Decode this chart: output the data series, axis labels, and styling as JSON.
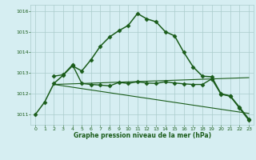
{
  "title": "Graphe pression niveau de la mer (hPa)",
  "background_color": "#d6eef2",
  "grid_color": "#aacccc",
  "line_color": "#1a5c1a",
  "xlim": [
    -0.5,
    23.5
  ],
  "ylim": [
    1010.5,
    1016.3
  ],
  "yticks": [
    1011,
    1012,
    1013,
    1014,
    1015,
    1016
  ],
  "xticks": [
    0,
    1,
    2,
    3,
    4,
    5,
    6,
    7,
    8,
    9,
    10,
    11,
    12,
    13,
    14,
    15,
    16,
    17,
    18,
    19,
    20,
    21,
    22,
    23
  ],
  "series": [
    {
      "x": [
        0,
        1,
        2,
        3,
        4,
        5,
        6,
        7,
        8,
        9,
        10,
        11,
        12,
        13,
        14,
        15,
        16,
        17,
        18,
        19,
        20,
        21,
        22,
        23
      ],
      "y": [
        1011.0,
        1011.6,
        1012.5,
        1012.9,
        1013.35,
        1013.1,
        1013.65,
        1014.3,
        1014.75,
        1015.05,
        1015.3,
        1015.88,
        1015.62,
        1015.48,
        1015.0,
        1014.8,
        1014.0,
        1013.3,
        1012.85,
        1012.82,
        1012.0,
        1011.9,
        1011.35,
        1010.78
      ],
      "marker": "D",
      "markersize": 2.5,
      "linewidth": 1.1,
      "linestyle": "-"
    },
    {
      "x": [
        2,
        3,
        4,
        5,
        6,
        7,
        8,
        9,
        10,
        11,
        12,
        13,
        14,
        15,
        16,
        17,
        18,
        19,
        20,
        21,
        22,
        23
      ],
      "y": [
        1012.85,
        1012.92,
        1013.4,
        1012.5,
        1012.45,
        1012.42,
        1012.38,
        1012.55,
        1012.5,
        1012.58,
        1012.52,
        1012.5,
        1012.58,
        1012.52,
        1012.48,
        1012.45,
        1012.45,
        1012.72,
        1011.98,
        1011.88,
        1011.3,
        1010.72
      ],
      "marker": "D",
      "markersize": 2.5,
      "linewidth": 1.0,
      "linestyle": "-"
    },
    {
      "x": [
        2,
        23
      ],
      "y": [
        1012.45,
        1012.78
      ],
      "marker": null,
      "markersize": 0,
      "linewidth": 0.8,
      "linestyle": "-"
    },
    {
      "x": [
        2,
        23
      ],
      "y": [
        1012.45,
        1011.05
      ],
      "marker": null,
      "markersize": 0,
      "linewidth": 0.8,
      "linestyle": "-"
    }
  ]
}
